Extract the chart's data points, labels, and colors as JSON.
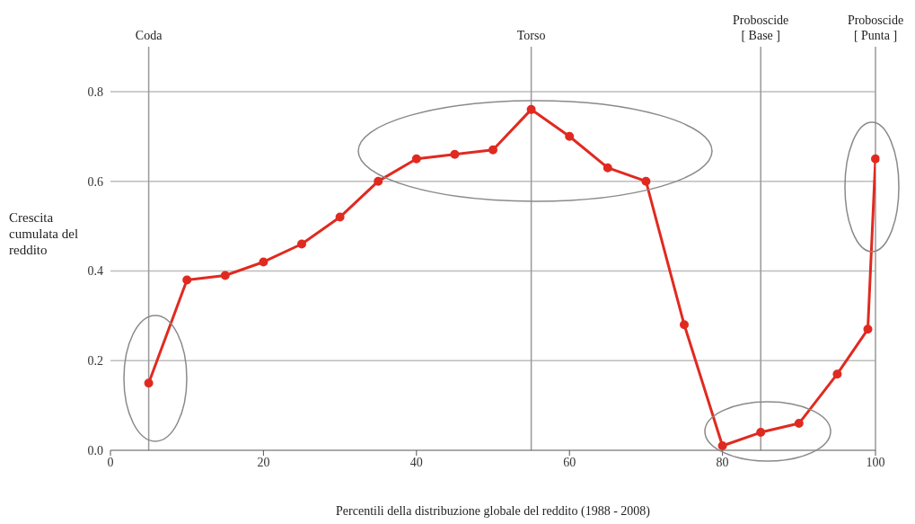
{
  "chart_data": {
    "type": "line",
    "xlabel": "Percentili della distribuzione globale del reddito (1988 - 2008)",
    "ylabel": "Crescita cumulata del reddito",
    "x": [
      5,
      10,
      15,
      20,
      25,
      30,
      35,
      40,
      45,
      50,
      55,
      60,
      65,
      70,
      75,
      80,
      85,
      90,
      95,
      99,
      100
    ],
    "series": [
      {
        "color": "#e02a20",
        "values": [
          0.15,
          0.38,
          0.39,
          0.42,
          0.46,
          0.52,
          0.6,
          0.65,
          0.66,
          0.67,
          0.76,
          0.7,
          0.63,
          0.6,
          0.28,
          0.01,
          0.04,
          0.06,
          0.17,
          0.27,
          0.65
        ]
      }
    ],
    "xlim": [
      0,
      100
    ],
    "xticks": [
      0,
      20,
      40,
      60,
      80,
      100
    ],
    "ylim": [
      0,
      0.9
    ],
    "yticks": [
      {
        "value": 0,
        "label": "0.0"
      },
      {
        "value": 0.2,
        "label": "0.2"
      },
      {
        "value": 0.4,
        "label": "0.4"
      },
      {
        "value": 0.6,
        "label": "0.6"
      },
      {
        "value": 0.8,
        "label": "0.8"
      }
    ],
    "grid": "y",
    "marker": "circle",
    "line_style": "solid",
    "legend": false,
    "ref_lines": [
      {
        "axis": "x",
        "value": 5,
        "label": "Coda",
        "color": "#999999"
      },
      {
        "axis": "x",
        "value": 55,
        "label": "Torso",
        "color": "#999999"
      },
      {
        "axis": "x",
        "value": 85,
        "label": "Proboscide\n[ Base ]",
        "color": "#999999"
      },
      {
        "axis": "x",
        "value": 100,
        "label": "Proboscide\n[ Punta ]",
        "color": "#999999"
      }
    ]
  }
}
